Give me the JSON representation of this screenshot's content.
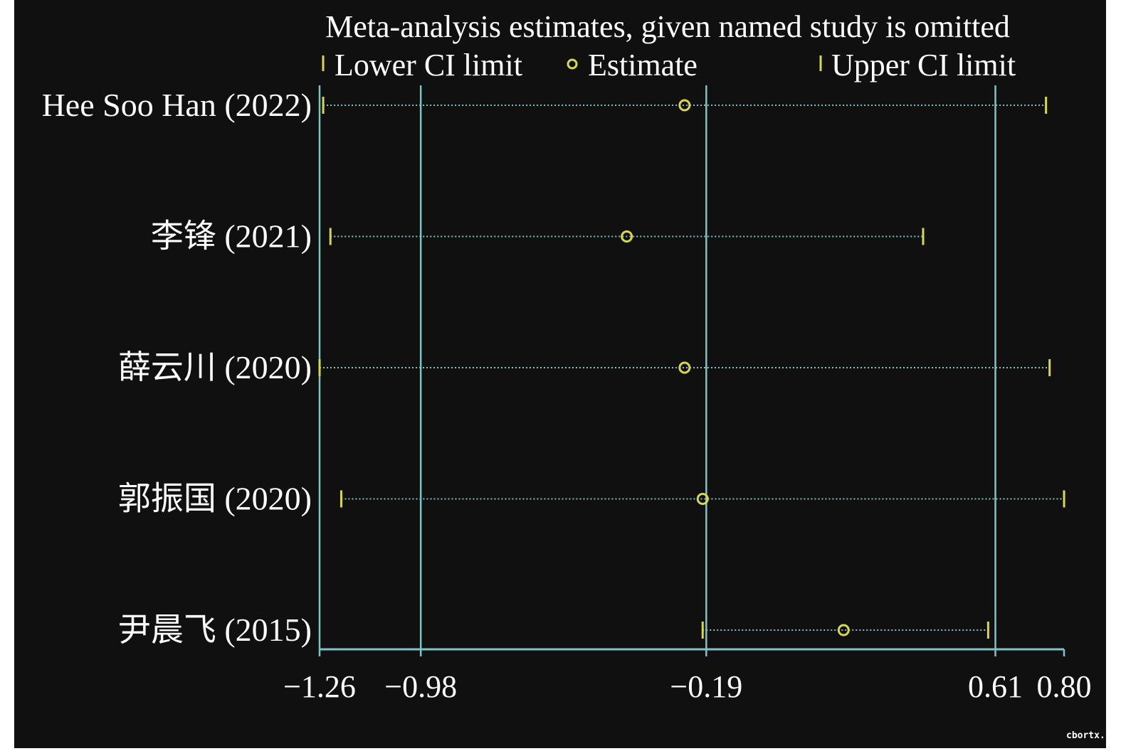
{
  "chart_data": {
    "type": "forest",
    "title": "Meta-analysis estimates, given named study is omitted",
    "legend": {
      "lower": "Lower CI limit",
      "estimate": "Estimate",
      "upper": "Upper CI limit",
      "placement": "top"
    },
    "xlim": [
      -1.26,
      0.8
    ],
    "xticks": [
      -1.26,
      -0.98,
      -0.19,
      0.61,
      0.8
    ],
    "xtick_labels": [
      "−1.26",
      "−0.98",
      "−0.19",
      "0.61",
      "0.80"
    ],
    "reference_lines": [
      -1.26,
      -0.98,
      -0.19,
      0.61
    ],
    "studies": [
      {
        "label": "Hee Soo Han (2022)",
        "lower": -1.25,
        "estimate": -0.25,
        "upper": 0.75
      },
      {
        "label": "李锋 (2021)",
        "lower": -1.23,
        "estimate": -0.41,
        "upper": 0.41
      },
      {
        "label": "薛云川 (2020)",
        "lower": -1.26,
        "estimate": -0.25,
        "upper": 0.76
      },
      {
        "label": "郭振国 (2020)",
        "lower": -1.2,
        "estimate": -0.2,
        "upper": 0.8
      },
      {
        "label": "尹晨飞 (2015)",
        "lower": -0.2,
        "estimate": 0.19,
        "upper": 0.59
      }
    ],
    "colors": {
      "marker": "#d8d84a",
      "line": "#7fc4c4",
      "text": "#ffffff",
      "background": "#101010"
    }
  },
  "watermark": "cbortx.c"
}
